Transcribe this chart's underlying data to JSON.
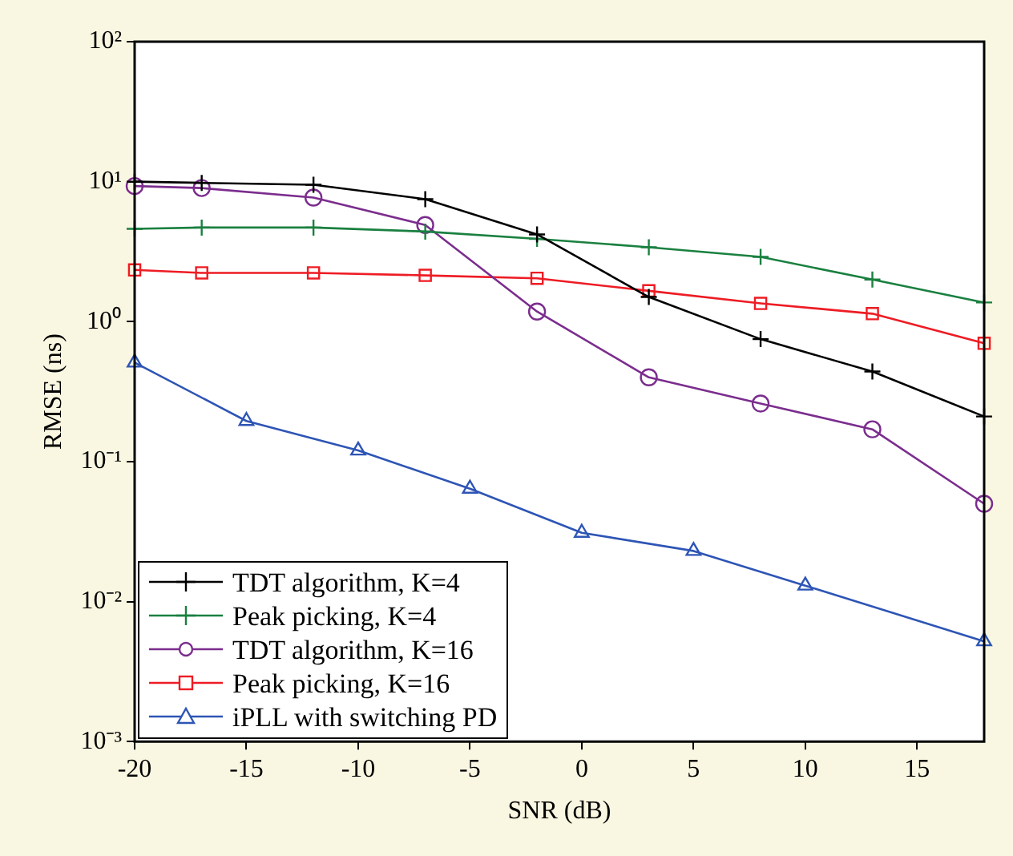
{
  "chart_data": {
    "type": "line",
    "xlabel": "SNR (dB)",
    "ylabel": "RMSE (ns)",
    "x": [
      -20,
      -17,
      -12,
      -7,
      -2,
      3,
      8,
      13,
      18
    ],
    "series": [
      {
        "name": "TDT algorithm, K=4",
        "color": "#000000",
        "marker": "cross",
        "values": [
          10,
          9.8,
          9.5,
          7.5,
          4.2,
          1.5,
          0.75,
          0.44,
          0.21
        ]
      },
      {
        "name": "Peak picking, K=4",
        "color": "#1a8040",
        "marker": "cross",
        "values": [
          4.6,
          4.7,
          4.7,
          4.4,
          3.9,
          3.4,
          2.9,
          2.0,
          1.37
        ]
      },
      {
        "name": "TDT algorithm, K=16",
        "color": "#7b2d8e",
        "marker": "circle",
        "values": [
          9.3,
          9.0,
          7.7,
          4.9,
          1.18,
          0.4,
          0.26,
          0.17,
          0.05
        ]
      },
      {
        "name": "Peak picking, K=16",
        "color": "#ee1c24",
        "marker": "square",
        "values": [
          2.34,
          2.23,
          2.23,
          2.14,
          2.04,
          1.66,
          1.35,
          1.14,
          0.7
        ]
      },
      {
        "name": "iPLL with switching PD",
        "color": "#2e55b5",
        "marker": "triangle",
        "x": [
          -20,
          -15,
          -10,
          -5,
          0,
          5,
          10,
          18
        ],
        "values": [
          0.51,
          0.195,
          0.12,
          0.064,
          0.031,
          0.023,
          0.013,
          0.0052
        ]
      }
    ],
    "log": "y",
    "xlim": [
      -20,
      18
    ],
    "xticks": [
      -20,
      -15,
      -10,
      -5,
      0,
      5,
      10,
      15
    ],
    "ylim": [
      0.001,
      100
    ],
    "yticks": [
      {
        "value": 0.001,
        "label": "10⁻³"
      },
      {
        "value": 0.01,
        "label": "10⁻²"
      },
      {
        "value": 0.1,
        "label": "10⁻¹"
      },
      {
        "value": 1,
        "label": "10⁰"
      },
      {
        "value": 10,
        "label": "10¹"
      },
      {
        "value": 100,
        "label": "10²"
      }
    ],
    "grid": false,
    "legend": "bottom left",
    "line_style": "solid"
  }
}
